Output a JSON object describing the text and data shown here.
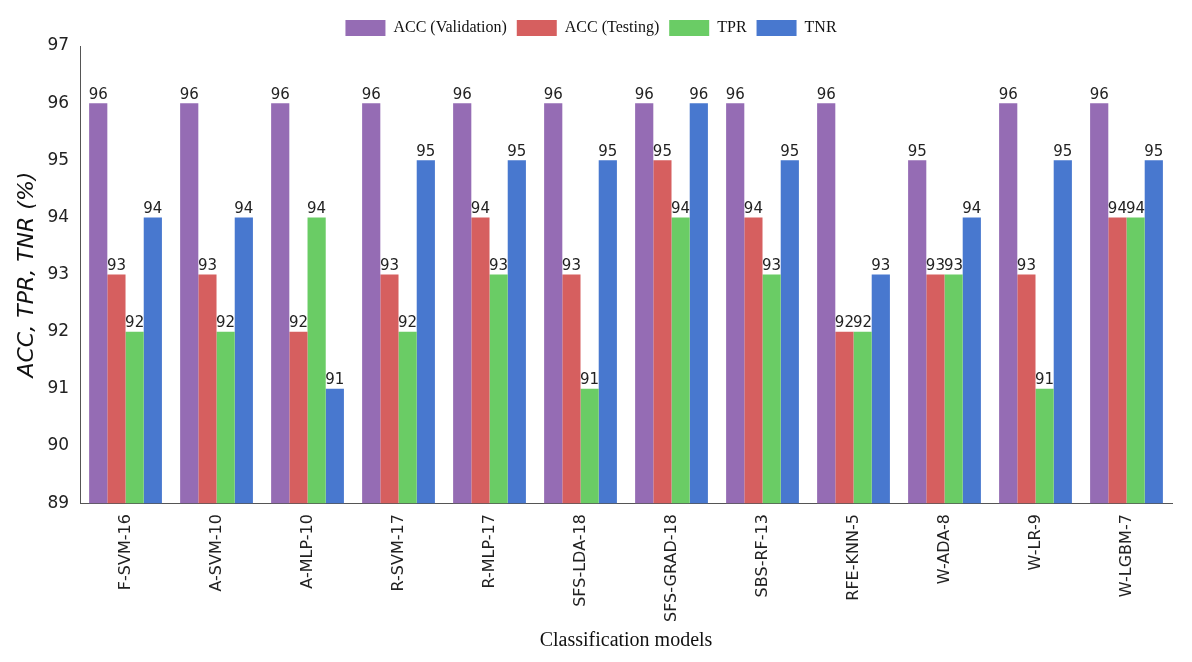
{
  "chart_data": {
    "type": "bar",
    "xlabel": "Classification models",
    "ylabel": "ACC, TPR, TNR (%)",
    "categories": [
      "F-SVM-16",
      "A-SVM-10",
      "A-MLP-10",
      "R-SVM-17",
      "R-MLP-17",
      "SFS-LDA-18",
      "SFS-GRAD-18",
      "SBS-RF-13",
      "RFE-KNN-5",
      "W-ADA-8",
      "W-LR-9",
      "W-LGBM-7"
    ],
    "series": [
      {
        "name": "ACC (Validation)",
        "color": "#956cb4",
        "values": [
          96,
          96,
          96,
          96,
          96,
          96,
          96,
          96,
          96,
          95,
          96,
          96
        ]
      },
      {
        "name": "ACC (Testing)",
        "color": "#d65f5f",
        "values": [
          93,
          93,
          92,
          93,
          94,
          93,
          95,
          94,
          92,
          93,
          93,
          94
        ]
      },
      {
        "name": "TPR",
        "color": "#6acc65",
        "values": [
          92,
          92,
          94,
          92,
          93,
          91,
          94,
          93,
          92,
          93,
          91,
          94
        ]
      },
      {
        "name": "TNR",
        "color": "#4878cf",
        "values": [
          94,
          94,
          91,
          95,
          95,
          95,
          96,
          95,
          93,
          94,
          95,
          95
        ]
      }
    ],
    "ylim": [
      89,
      97
    ],
    "yticks": [
      89,
      90,
      91,
      92,
      93,
      94,
      95,
      96,
      97
    ],
    "grid": false,
    "legend": "top",
    "data_labels": true
  }
}
